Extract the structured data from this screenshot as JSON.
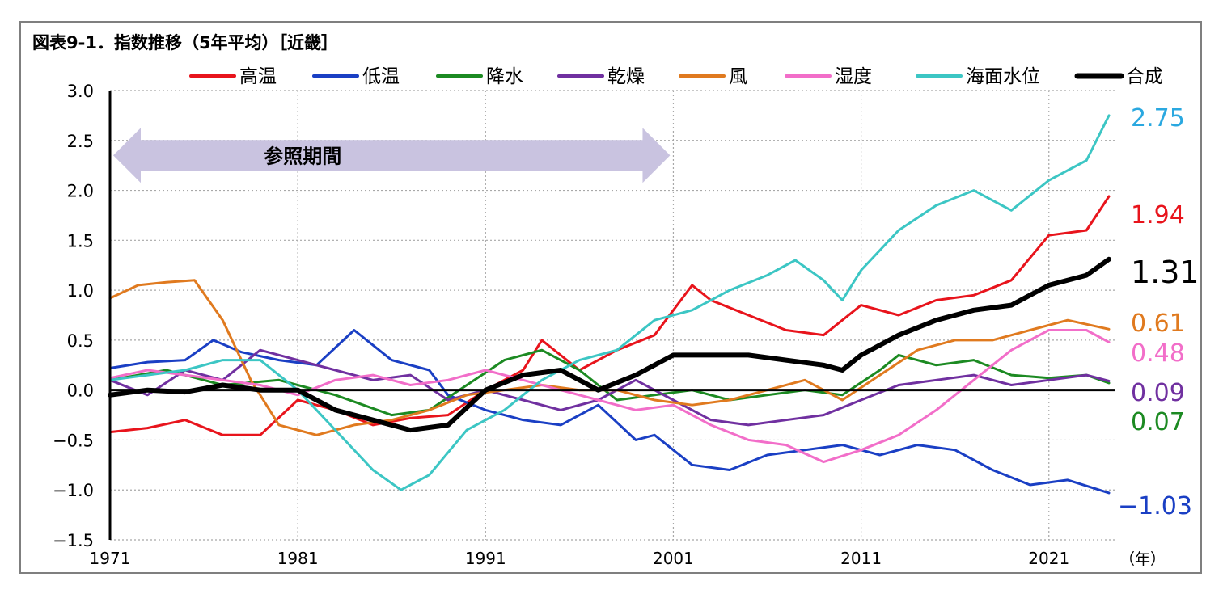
{
  "chart_data": {
    "type": "line",
    "title": "図表9-1．指数推移（5年平均）［近畿］",
    "x_unit": "（年）",
    "x_ticks": [
      1971,
      1981,
      1991,
      2001,
      2011,
      2021
    ],
    "xlim": [
      1971,
      2024.5
    ],
    "y_ticks": [
      "3.0",
      "2.5",
      "2.0",
      "1.5",
      "1.0",
      "0.5",
      "0.0",
      "−0.5",
      "−1.0",
      "−1.5"
    ],
    "ylim": [
      -1.5,
      3.0
    ],
    "grid": true,
    "legend_position": "top",
    "annotation": {
      "label": "参照期間",
      "from": 1971,
      "to": 2001
    },
    "series": [
      {
        "name": "高温",
        "color": "#e8141c",
        "end_label": "1.94",
        "x": [
          1971,
          1973,
          1975,
          1977,
          1979,
          1981,
          1983,
          1985,
          1987,
          1989,
          1991,
          1993,
          1994,
          1996,
          1998,
          2000,
          2002,
          2003,
          2005,
          2007,
          2009,
          2011,
          2013,
          2015,
          2017,
          2019,
          2021,
          2023,
          2024.2
        ],
        "y": [
          -0.42,
          -0.38,
          -0.3,
          -0.45,
          -0.45,
          -0.1,
          -0.2,
          -0.35,
          -0.28,
          -0.25,
          0.0,
          0.2,
          0.5,
          0.2,
          0.4,
          0.55,
          1.05,
          0.9,
          0.75,
          0.6,
          0.55,
          0.85,
          0.75,
          0.9,
          0.95,
          1.1,
          1.55,
          1.6,
          1.94
        ]
      },
      {
        "name": "低温",
        "color": "#1a3fc4",
        "end_label": "−1.03",
        "x": [
          1971,
          1973,
          1975,
          1976.5,
          1978,
          1980,
          1982,
          1984,
          1986,
          1988,
          1989,
          1991,
          1993,
          1995,
          1997,
          1999,
          2000,
          2002,
          2004,
          2006,
          2008,
          2010,
          2012,
          2014,
          2016,
          2018,
          2020,
          2022,
          2024.2
        ],
        "y": [
          0.22,
          0.28,
          0.3,
          0.5,
          0.38,
          0.3,
          0.25,
          0.6,
          0.3,
          0.2,
          -0.05,
          -0.2,
          -0.3,
          -0.35,
          -0.15,
          -0.5,
          -0.45,
          -0.75,
          -0.8,
          -0.65,
          -0.6,
          -0.55,
          -0.65,
          -0.55,
          -0.6,
          -0.8,
          -0.95,
          -0.9,
          -1.03
        ]
      },
      {
        "name": "降水",
        "color": "#1c8a22",
        "end_label": "0.07",
        "x": [
          1971,
          1974,
          1977,
          1980,
          1983,
          1986,
          1988,
          1990,
          1992,
          1994,
          1996,
          1998,
          2000,
          2002,
          2004,
          2006,
          2008,
          2010,
          2012,
          2013,
          2015,
          2017,
          2019,
          2021,
          2023,
          2024.2
        ],
        "y": [
          0.1,
          0.2,
          0.05,
          0.1,
          -0.05,
          -0.25,
          -0.2,
          0.05,
          0.3,
          0.4,
          0.2,
          -0.1,
          -0.05,
          0.0,
          -0.1,
          -0.05,
          0.0,
          -0.05,
          0.2,
          0.35,
          0.25,
          0.3,
          0.15,
          0.12,
          0.15,
          0.07
        ]
      },
      {
        "name": "乾燥",
        "color": "#7030a0",
        "end_label": "0.09",
        "x": [
          1971,
          1973,
          1975,
          1977,
          1979,
          1981,
          1983,
          1985,
          1987,
          1989,
          1991,
          1993,
          1995,
          1997,
          1999,
          2001,
          2003,
          2005,
          2007,
          2009,
          2011,
          2013,
          2015,
          2017,
          2019,
          2021,
          2023,
          2024.2
        ],
        "y": [
          0.1,
          -0.05,
          0.2,
          0.1,
          0.4,
          0.3,
          0.2,
          0.1,
          0.15,
          -0.1,
          0.0,
          -0.1,
          -0.2,
          -0.1,
          0.1,
          -0.1,
          -0.3,
          -0.35,
          -0.3,
          -0.25,
          -0.1,
          0.05,
          0.1,
          0.15,
          0.05,
          0.1,
          0.15,
          0.09
        ]
      },
      {
        "name": "風",
        "color": "#e07a1f",
        "end_label": "0.61",
        "x": [
          1971,
          1972.5,
          1974,
          1975.5,
          1977,
          1978.5,
          1980,
          1982,
          1984,
          1986,
          1988,
          1990,
          1992,
          1994,
          1996,
          1998,
          2000,
          2002,
          2004,
          2006,
          2008,
          2010,
          2012,
          2014,
          2016,
          2018,
          2020,
          2022,
          2024.2
        ],
        "y": [
          0.92,
          1.05,
          1.08,
          1.1,
          0.7,
          0.1,
          -0.35,
          -0.45,
          -0.35,
          -0.3,
          -0.2,
          -0.05,
          0.0,
          0.05,
          0.0,
          0.0,
          -0.1,
          -0.15,
          -0.1,
          0.0,
          0.1,
          -0.1,
          0.15,
          0.4,
          0.5,
          0.5,
          0.6,
          0.7,
          0.61
        ]
      },
      {
        "name": "湿度",
        "color": "#f26ec9",
        "end_label": "0.48",
        "x": [
          1971,
          1973,
          1975,
          1977,
          1979,
          1981,
          1983,
          1985,
          1987,
          1989,
          1991,
          1993,
          1995,
          1997,
          1999,
          2001,
          2003,
          2005,
          2007,
          2009,
          2011,
          2013,
          2015,
          2017,
          2019,
          2021,
          2023,
          2024.2
        ],
        "y": [
          0.12,
          0.2,
          0.15,
          0.1,
          0.05,
          -0.05,
          0.1,
          0.15,
          0.05,
          0.1,
          0.2,
          0.1,
          0.0,
          -0.1,
          -0.2,
          -0.15,
          -0.35,
          -0.5,
          -0.55,
          -0.72,
          -0.6,
          -0.45,
          -0.2,
          0.1,
          0.4,
          0.6,
          0.6,
          0.48
        ]
      },
      {
        "name": "海面水位",
        "color": "#3cc6c4",
        "end_label": "2.75",
        "x": [
          1971,
          1973,
          1975,
          1977,
          1979,
          1981,
          1983,
          1985,
          1986.5,
          1988,
          1990,
          1992,
          1994,
          1996,
          1998,
          2000,
          2002,
          2004,
          2006,
          2007.5,
          2009,
          2010,
          2011,
          2013,
          2015,
          2017,
          2019,
          2021,
          2023,
          2024.2
        ],
        "y": [
          0.1,
          0.15,
          0.2,
          0.3,
          0.3,
          0.0,
          -0.4,
          -0.8,
          -1.0,
          -0.85,
          -0.4,
          -0.2,
          0.1,
          0.3,
          0.4,
          0.7,
          0.8,
          1.0,
          1.15,
          1.3,
          1.1,
          0.9,
          1.2,
          1.6,
          1.85,
          2.0,
          1.8,
          2.1,
          2.3,
          2.75
        ]
      },
      {
        "name": "合成",
        "color": "#000000",
        "end_label": "1.31",
        "x": [
          1971,
          1973,
          1975,
          1977,
          1979,
          1981,
          1983,
          1985,
          1987,
          1989,
          1991,
          1993,
          1995,
          1997,
          1999,
          2001,
          2003,
          2005,
          2007,
          2009,
          2010,
          2011,
          2013,
          2015,
          2017,
          2019,
          2021,
          2023,
          2024.2
        ],
        "y": [
          -0.05,
          0.0,
          -0.02,
          0.05,
          0.0,
          0.0,
          -0.2,
          -0.3,
          -0.4,
          -0.35,
          0.0,
          0.15,
          0.2,
          0.0,
          0.15,
          0.35,
          0.35,
          0.35,
          0.3,
          0.25,
          0.2,
          0.35,
          0.55,
          0.7,
          0.8,
          0.85,
          1.05,
          1.15,
          1.31
        ]
      }
    ]
  }
}
